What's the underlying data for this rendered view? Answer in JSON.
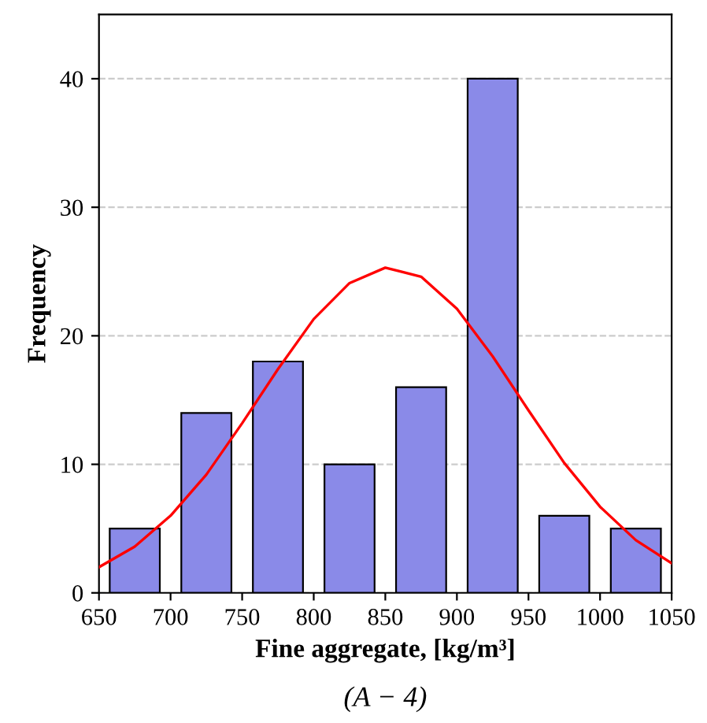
{
  "chart_data": {
    "type": "histogram",
    "xlabel": "Fine aggregate, [kg/m³]",
    "ylabel": "Frequency",
    "annotations": [
      "(A − 4)"
    ],
    "bins": [
      650,
      700,
      750,
      800,
      850,
      900,
      950,
      1000,
      1050
    ],
    "values": [
      5,
      14,
      18,
      10,
      16,
      40,
      6,
      5
    ],
    "color": "#8a8ae8",
    "series": [
      {
        "type": "line",
        "color": "#ff0000",
        "x": [
          650,
          675,
          700,
          725,
          750,
          775,
          800,
          825,
          850,
          875,
          900,
          925,
          950,
          975,
          1000,
          1025,
          1050
        ],
        "values": [
          2.0,
          3.6,
          6.0,
          9.2,
          13.2,
          17.4,
          21.3,
          24.1,
          25.3,
          24.6,
          22.1,
          18.4,
          14.2,
          10.1,
          6.7,
          4.1,
          2.3
        ]
      }
    ],
    "xlim": [
      650,
      1050
    ],
    "xticks": [
      650,
      700,
      750,
      800,
      850,
      900,
      950,
      1000,
      1050
    ],
    "ylim": [
      0,
      45
    ],
    "yticks": [
      0,
      10,
      20,
      30,
      40
    ],
    "grid": "y"
  }
}
